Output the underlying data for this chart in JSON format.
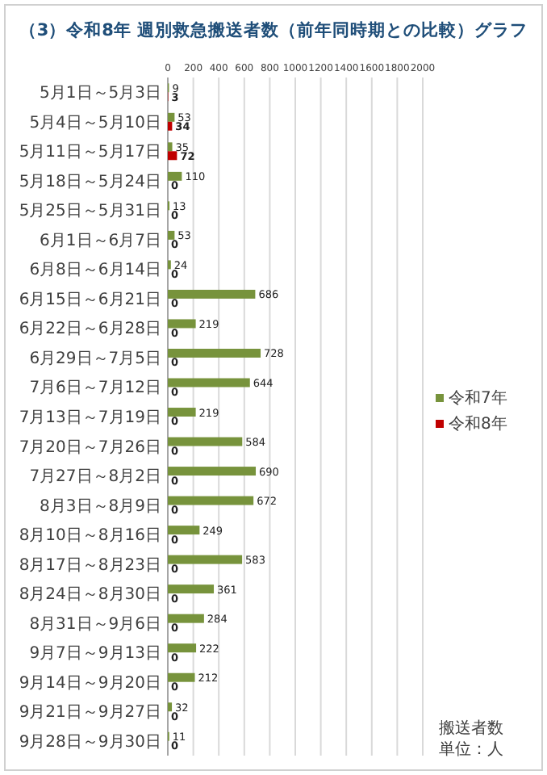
{
  "chart_data": {
    "type": "bar",
    "orientation": "horizontal",
    "title": "（3）令和8年 週別救急搬送者数（前年同時期との比較）グラフ",
    "categories": [
      "5月1日～5月3日",
      "5月4日～5月10日",
      "5月11日～5月17日",
      "5月18日～5月24日",
      "5月25日～5月31日",
      "6月1日～6月7日",
      "6月8日～6月14日",
      "6月15日～6月21日",
      "6月22日～6月28日",
      "6月29日～7月5日",
      "7月6日～7月12日",
      "7月13日～7月19日",
      "7月20日～7月26日",
      "7月27日～8月2日",
      "8月3日～8月9日",
      "8月10日～8月16日",
      "8月17日～8月23日",
      "8月24日～8月30日",
      "8月31日～9月6日",
      "9月7日～9月13日",
      "9月14日～9月20日",
      "9月21日～9月27日",
      "9月28日～9月30日"
    ],
    "series": [
      {
        "name": "令和7年",
        "color": "#77933c",
        "values": [
          9,
          53,
          35,
          110,
          13,
          53,
          24,
          686,
          219,
          728,
          644,
          219,
          584,
          690,
          672,
          249,
          583,
          361,
          284,
          222,
          212,
          32,
          11
        ]
      },
      {
        "name": "令和8年",
        "color": "#c00000",
        "values": [
          3,
          34,
          72,
          0,
          0,
          0,
          0,
          0,
          0,
          0,
          0,
          0,
          0,
          0,
          0,
          0,
          0,
          0,
          0,
          0,
          0,
          0,
          0
        ]
      }
    ],
    "xlim": [
      0,
      2000
    ],
    "xticks": [
      0,
      200,
      400,
      600,
      800,
      1000,
      1200,
      1400,
      1600,
      1800,
      2000
    ],
    "grid": "x",
    "legend": "right",
    "data_labels": true,
    "annotations": [
      "搬送者数",
      "単位：人"
    ]
  }
}
